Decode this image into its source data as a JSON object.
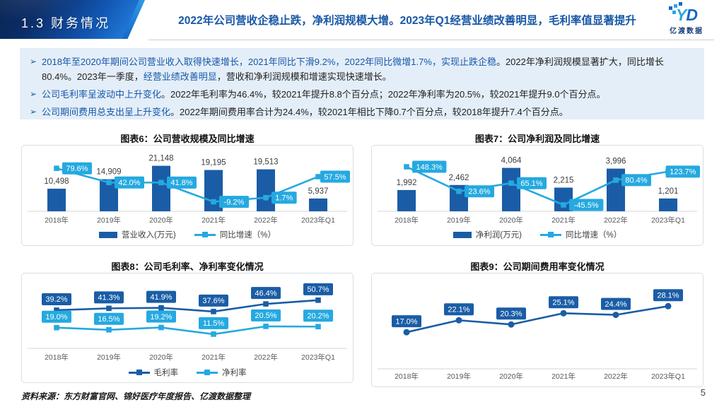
{
  "header": {
    "section_label": "1.3 财务情况",
    "title": "2022年公司营收企稳止跌，净利润规模大增。2023年Q1经营业绩改善明显，毛利率值显著提升",
    "logo_y": "Y",
    "logo_d": "D",
    "logo_caption": "亿渡数据"
  },
  "summary": {
    "bullet_char": "➢",
    "bullets": [
      {
        "segments": [
          {
            "t": "2018年至2020年期间公司营业收入取得快速增长，2021年同比下滑9.2%，2022年同比微增1.7%，实现止跌企稳",
            "c": "blue"
          },
          {
            "t": "。2022年净利润规模显著扩大，同比增长80.4%。2023年一季度，",
            "c": "dark"
          },
          {
            "t": "经营业绩改善明显",
            "c": "blue"
          },
          {
            "t": "，营收和净利润规模和增速实现快速增长。",
            "c": "dark"
          }
        ]
      },
      {
        "segments": [
          {
            "t": "公司毛利率呈波动中上升变化",
            "c": "blue"
          },
          {
            "t": "。2022年毛利率为46.4%，较2021年提升8.8个百分点；2022年净利率为20.5%，较2021年提升9.0个百分点。",
            "c": "dark"
          }
        ]
      },
      {
        "segments": [
          {
            "t": "公司期间费用总支出呈上升变化",
            "c": "blue"
          },
          {
            "t": "。2022年期间费用率合计为24.4%，较2021年相比下降0.7个百分点，较2018年提升7.4个百分点。",
            "c": "dark"
          }
        ]
      }
    ]
  },
  "colors": {
    "dark_blue": "#1a5da6",
    "cyan": "#25a9e0",
    "axis": "#d6d6d6",
    "bar_label": "#3c3c3c",
    "x_label": "#595959"
  },
  "chart_data": [
    {
      "id": "chart6",
      "type": "bar+line",
      "title": "图表6：公司营收规模及同比增速",
      "categories": [
        "2018年",
        "2019年",
        "2020年",
        "2021年",
        "2022年",
        "2023年Q1"
      ],
      "series": [
        {
          "name": "营业收入(万元)",
          "type": "bar",
          "color": "dark_blue",
          "values": [
            10498,
            14909,
            21148,
            19195,
            19513,
            5937
          ],
          "labels": [
            "10,498",
            "14,909",
            "21,148",
            "19,195",
            "19,513",
            "5,937"
          ]
        },
        {
          "name": "同比增速（%）",
          "type": "line",
          "color": "cyan",
          "values": [
            79.6,
            42.0,
            41.8,
            -9.2,
            1.7,
            57.5
          ],
          "labels": [
            "79.6%",
            "42.0%",
            "41.8%",
            "-9.2%",
            "1.7%",
            "57.5%"
          ]
        }
      ],
      "legend": [
        {
          "type": "bar",
          "color": "dark_blue",
          "label": "营业收入(万元)"
        },
        {
          "type": "line",
          "color": "cyan",
          "label": "同比增速（%）"
        }
      ]
    },
    {
      "id": "chart7",
      "type": "bar+line",
      "title": "图表7：公司净利润及同比增速",
      "categories": [
        "2018年",
        "2019年",
        "2020年",
        "2021年",
        "2022年",
        "2023年Q1"
      ],
      "series": [
        {
          "name": "净利润(万元)",
          "type": "bar",
          "color": "dark_blue",
          "values": [
            1992,
            2462,
            4064,
            2215,
            3996,
            1201
          ],
          "labels": [
            "1,992",
            "2,462",
            "4,064",
            "2,215",
            "3,996",
            "1,201"
          ]
        },
        {
          "name": "同比增速（%）",
          "type": "line",
          "color": "cyan",
          "values": [
            148.3,
            23.6,
            65.1,
            -45.5,
            80.4,
            123.7
          ],
          "labels": [
            "148.3%",
            "23.6%",
            "65.1%",
            "-45.5%",
            "80.4%",
            "123.7%"
          ]
        }
      ],
      "legend": [
        {
          "type": "bar",
          "color": "dark_blue",
          "label": "净利润(万元)"
        },
        {
          "type": "line",
          "color": "cyan",
          "label": "同比增速（%）"
        }
      ]
    },
    {
      "id": "chart8",
      "type": "line",
      "title": "图表8：公司毛利率、净利率变化情况",
      "categories": [
        "2018年",
        "2019年",
        "2020年",
        "2021年",
        "2022年",
        "2023年Q1"
      ],
      "series": [
        {
          "name": "毛利率",
          "type": "line",
          "color": "dark_blue",
          "values": [
            39.2,
            41.3,
            41.9,
            37.6,
            46.4,
            50.7
          ],
          "labels": [
            "39.2%",
            "41.3%",
            "41.9%",
            "37.6%",
            "46.4%",
            "50.7%"
          ]
        },
        {
          "name": "净利率",
          "type": "line",
          "color": "cyan",
          "values": [
            19.0,
            16.5,
            19.2,
            11.5,
            20.5,
            20.2
          ],
          "labels": [
            "19.0%",
            "16.5%",
            "19.2%",
            "11.5%",
            "20.5%",
            "20.2%"
          ]
        }
      ],
      "legend": [
        {
          "type": "line",
          "color": "dark_blue",
          "label": "毛利率"
        },
        {
          "type": "line",
          "color": "cyan",
          "label": "净利率"
        }
      ]
    },
    {
      "id": "chart9",
      "type": "line",
      "title": "图表9：公司期间费用率变化情况",
      "categories": [
        "2018年",
        "2019年",
        "2020年",
        "2021年",
        "2022年",
        "2023年Q1"
      ],
      "series": [
        {
          "name": "期间费用率",
          "type": "line",
          "color": "dark_blue",
          "values": [
            17.0,
            22.1,
            20.3,
            25.1,
            24.4,
            28.1
          ],
          "labels": [
            "17.0%",
            "22.1%",
            "20.3%",
            "25.1%",
            "24.4%",
            "28.1%"
          ]
        }
      ],
      "legend": []
    }
  ],
  "footer": {
    "source": "资料来源：东方财富官网、锦好医疗年度报告、亿渡数据整理",
    "page_number": "5"
  }
}
